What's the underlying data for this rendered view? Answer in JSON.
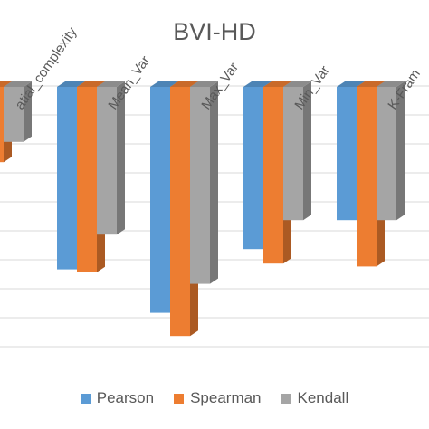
{
  "chart_data": {
    "type": "bar",
    "title": "BVI-HD",
    "categories": [
      "Spatial_complexity",
      "Mean_Var",
      "Max_Var",
      "Min_Var",
      "K-Frame"
    ],
    "category_labels_visible": [
      "atial_complexity",
      "Mean_Var",
      "Max_Var",
      "Min_Var",
      "K-Fram"
    ],
    "series": [
      {
        "name": "Pearson",
        "color": "#5b9bd5",
        "values": [
          -0.12,
          -0.63,
          -0.78,
          -0.56,
          -0.46
        ]
      },
      {
        "name": "Spearman",
        "color": "#ed7d31",
        "values": [
          -0.26,
          -0.64,
          -0.86,
          -0.61,
          -0.62
        ]
      },
      {
        "name": "Kendall",
        "color": "#a5a5a5",
        "values": [
          -0.19,
          -0.51,
          -0.68,
          -0.46,
          -0.46
        ]
      }
    ],
    "ylim": [
      -1,
      0
    ],
    "grid": true,
    "legend_position": "bottom"
  }
}
